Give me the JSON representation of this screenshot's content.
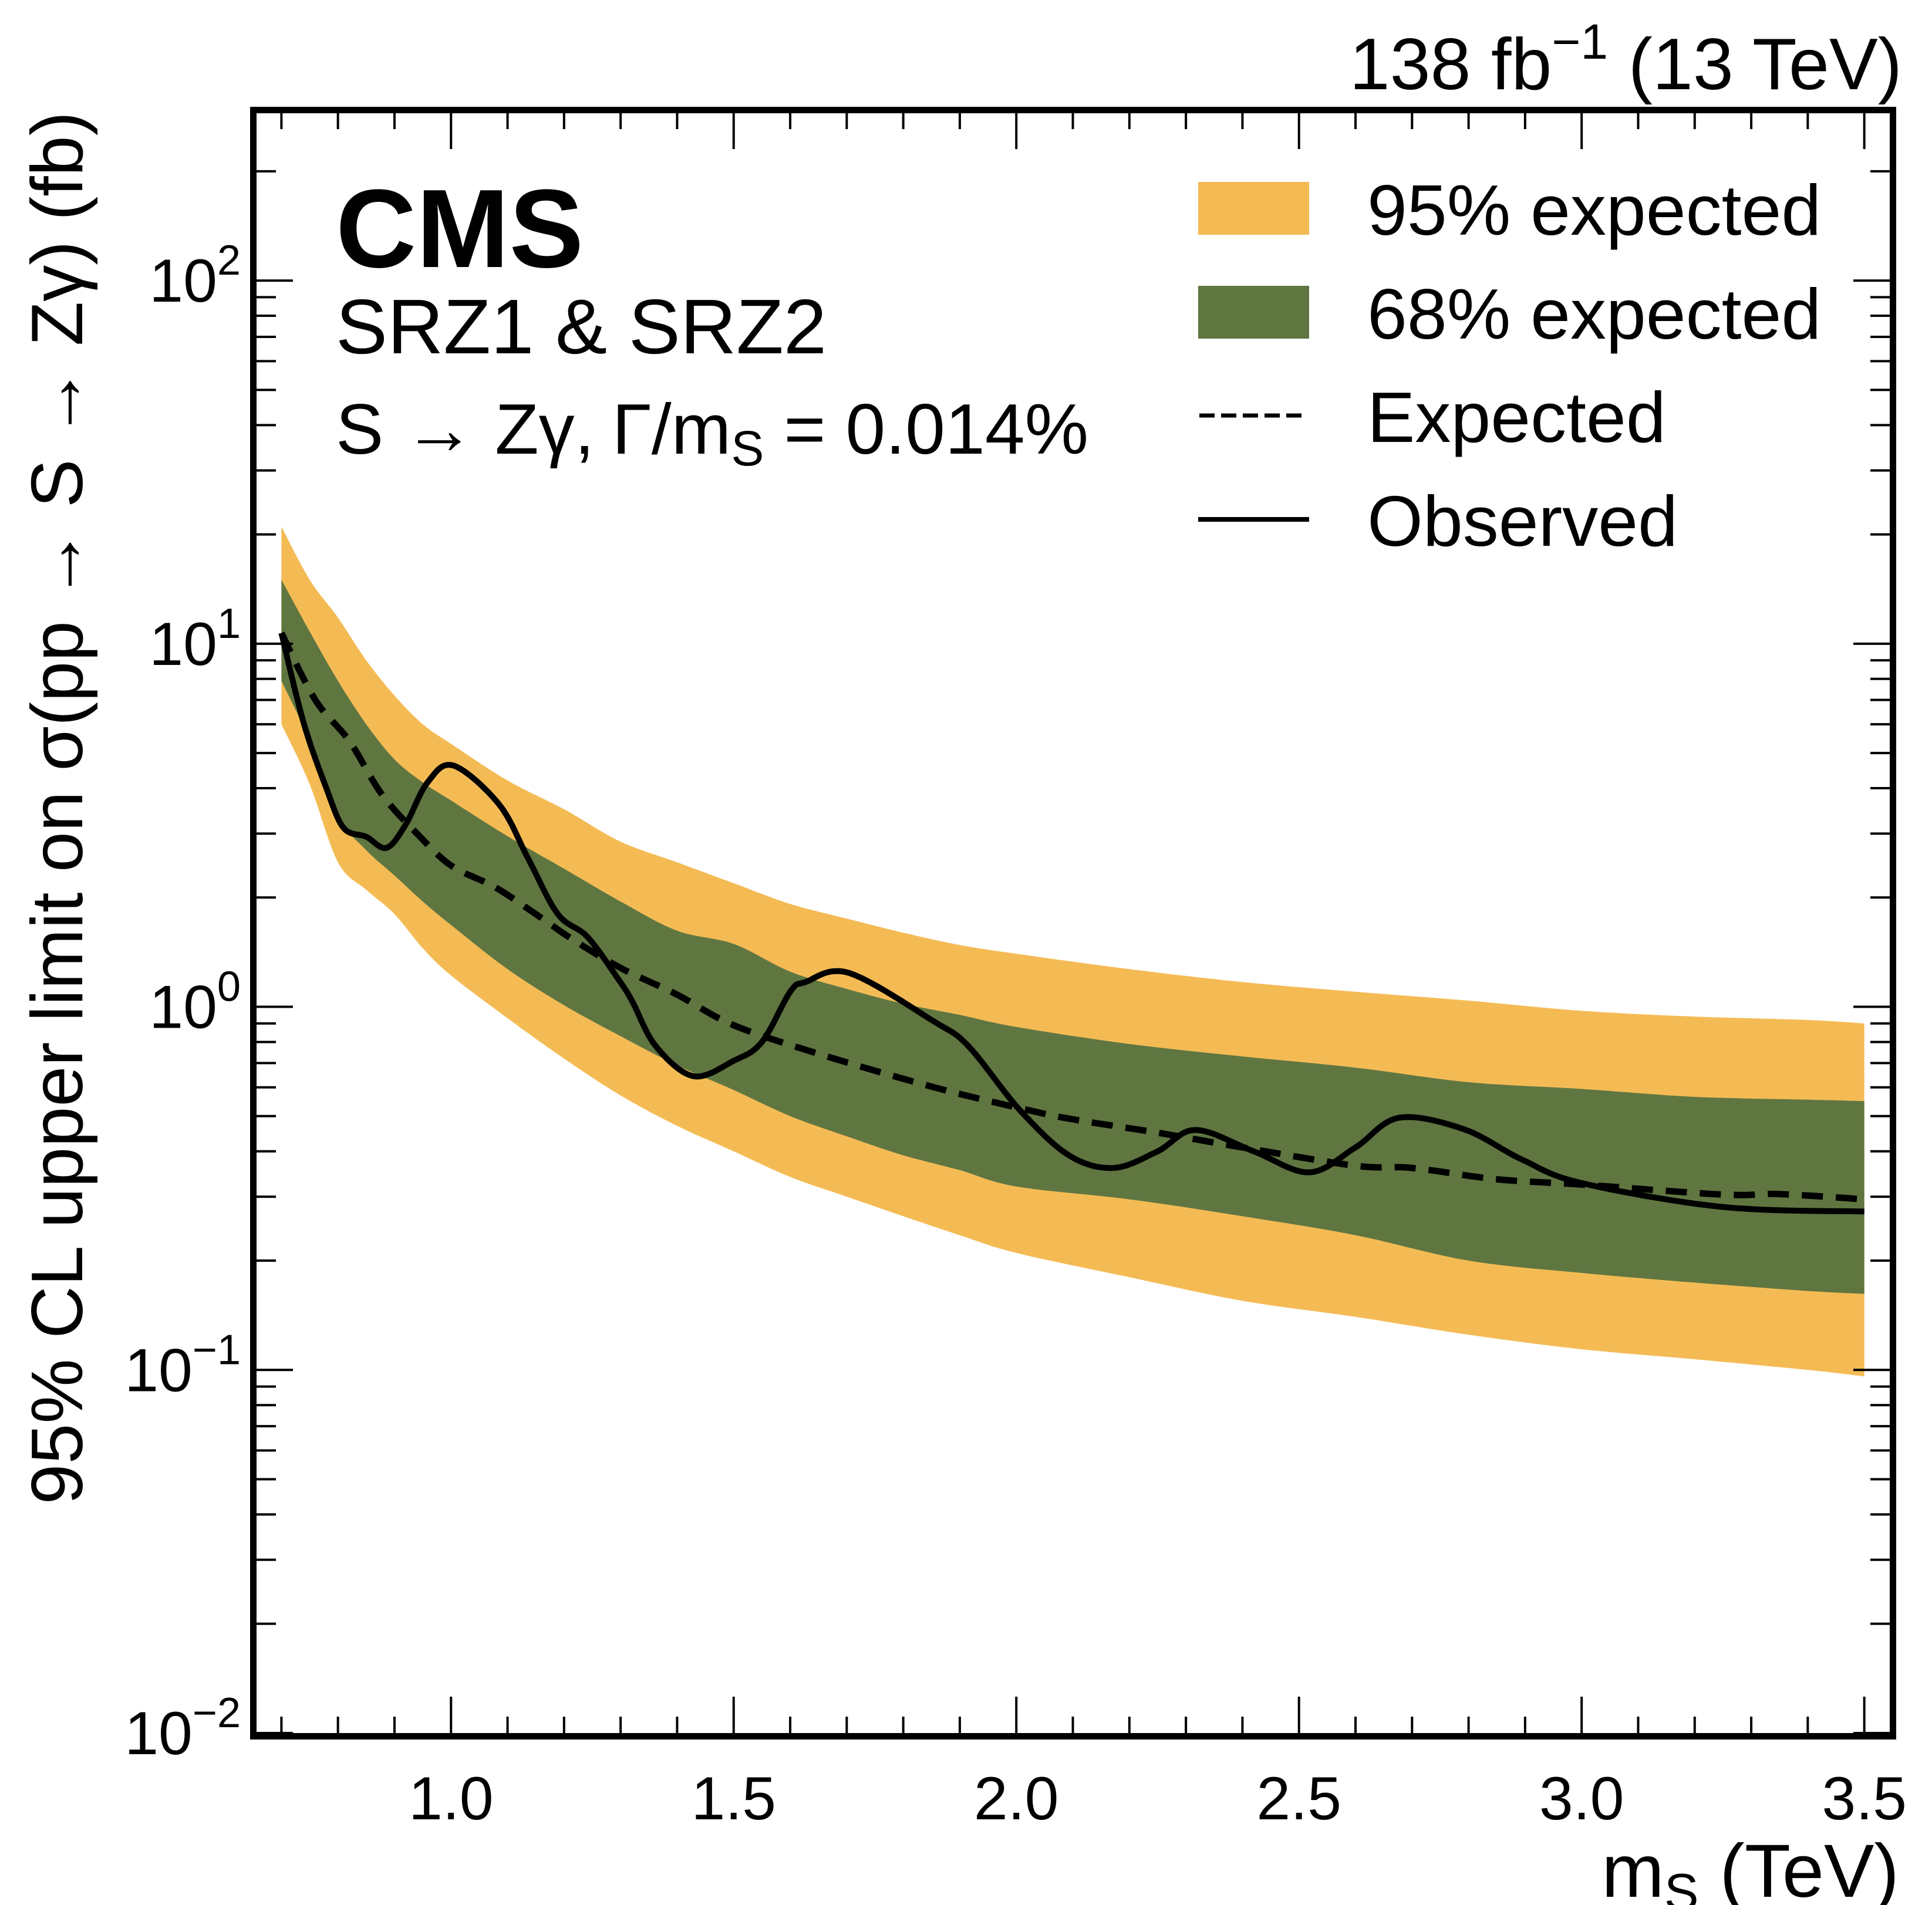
{
  "chart_data": {
    "type": "line",
    "title": "",
    "experiment_label": "CMS",
    "region_label": "SRZ1 & SRZ2",
    "process_label": {
      "decay": "S → Zγ,",
      "width_prefix": "Γ/m",
      "width_sub": "S",
      "width_value": " = 0.014%"
    },
    "lumi_label": {
      "value": "138 fb",
      "exponent": "−1",
      "energy": " (13 TeV)"
    },
    "xlabel": {
      "main": "m",
      "sub": "S",
      "unit": " (TeV)"
    },
    "ylabel": "95% CL upper limit on σ(pp → S → Zγ) (fb)",
    "xscale": "linear",
    "yscale": "log",
    "xlim": [
      0.656,
      3.545
    ],
    "ylim": [
      0.01,
      290
    ],
    "xticks": [
      1.0,
      1.5,
      2.0,
      2.5,
      3.0,
      3.5
    ],
    "xtick_labels": [
      "1.0",
      "1.5",
      "2.0",
      "2.5",
      "3.0",
      "3.5"
    ],
    "xminor_step": 0.1,
    "yticks": [
      {
        "value": 0.01,
        "base": "10",
        "exp": "−2"
      },
      {
        "value": 0.1,
        "base": "10",
        "exp": "−1"
      },
      {
        "value": 1,
        "base": "10",
        "exp": "0"
      },
      {
        "value": 10,
        "base": "10",
        "exp": "1"
      },
      {
        "value": 100,
        "base": "10",
        "exp": "2"
      }
    ],
    "grid": false,
    "legend_position": "top-right",
    "legend": [
      {
        "label": "95% expected",
        "kind": "fill",
        "color": "#f4bb55"
      },
      {
        "label": "68% expected",
        "kind": "fill",
        "color": "#607641"
      },
      {
        "label": "Expected",
        "kind": "dashed",
        "color": "#000000"
      },
      {
        "label": "Observed",
        "kind": "solid",
        "color": "#000000"
      }
    ],
    "colors": {
      "band95": "#f4bb55",
      "band68": "#607641",
      "line": "#000000"
    },
    "bands": {
      "x": [
        0.7,
        0.75,
        0.8,
        0.85,
        0.9,
        0.95,
        1.0,
        1.1,
        1.2,
        1.3,
        1.4,
        1.5,
        1.6,
        1.7,
        1.8,
        1.9,
        2.0,
        2.2,
        2.4,
        2.6,
        2.8,
        3.0,
        3.2,
        3.4,
        3.5
      ],
      "band95_upper": [
        21.0,
        15.0,
        11.8,
        9.0,
        7.2,
        6.0,
        5.3,
        4.2,
        3.5,
        2.85,
        2.5,
        2.19,
        1.92,
        1.75,
        1.6,
        1.48,
        1.4,
        1.27,
        1.17,
        1.1,
        1.04,
        0.975,
        0.94,
        0.92,
        0.9
      ],
      "band68_upper": [
        15.0,
        10.8,
        7.9,
        6.0,
        4.8,
        4.15,
        3.7,
        2.95,
        2.4,
        1.95,
        1.62,
        1.49,
        1.25,
        1.12,
        1.02,
        0.95,
        0.88,
        0.79,
        0.73,
        0.68,
        0.62,
        0.594,
        0.565,
        0.555,
        0.55
      ],
      "band68_lower": [
        7.9,
        5.4,
        3.35,
        2.7,
        2.3,
        1.95,
        1.68,
        1.27,
        1.01,
        0.83,
        0.69,
        0.59,
        0.5,
        0.44,
        0.39,
        0.355,
        0.32,
        0.295,
        0.265,
        0.235,
        0.2,
        0.185,
        0.174,
        0.165,
        0.162
      ],
      "band95_lower": [
        6.0,
        4.1,
        2.5,
        2.1,
        1.8,
        1.45,
        1.22,
        0.93,
        0.72,
        0.57,
        0.47,
        0.4,
        0.34,
        0.3,
        0.265,
        0.235,
        0.21,
        0.18,
        0.155,
        0.14,
        0.125,
        0.114,
        0.107,
        0.1,
        0.096
      ]
    },
    "series": [
      {
        "name": "Expected",
        "style": "dashed",
        "x": [
          0.7,
          0.76,
          0.82,
          0.877,
          0.938,
          1.0,
          1.077,
          1.15,
          1.216,
          1.3,
          1.4,
          1.5,
          1.653,
          1.855,
          2.02,
          2.1,
          2.25,
          2.4,
          2.6,
          2.7,
          2.85,
          3.0,
          3.25,
          3.35,
          3.5
        ],
        "y": [
          10.7,
          7.0,
          5.4,
          3.86,
          3.02,
          2.45,
          2.14,
          1.8,
          1.53,
          1.28,
          1.08,
          0.89,
          0.74,
          0.6,
          0.52,
          0.49,
          0.45,
          0.41,
          0.365,
          0.36,
          0.335,
          0.324,
          0.304,
          0.305,
          0.295
        ]
      },
      {
        "name": "Observed",
        "style": "solid",
        "x": [
          0.7,
          0.739,
          0.779,
          0.81,
          0.85,
          0.886,
          0.92,
          0.958,
          1.004,
          1.085,
          1.137,
          1.189,
          1.241,
          1.293,
          1.32,
          1.362,
          1.429,
          1.5,
          1.55,
          1.6,
          1.627,
          1.704,
          1.855,
          1.915,
          2.006,
          2.093,
          2.172,
          2.25,
          2.317,
          2.42,
          2.518,
          2.6,
          2.677,
          2.792,
          2.894,
          3.0,
          3.25,
          3.5
        ],
        "y": [
          10.7,
          6.08,
          4.02,
          3.11,
          2.94,
          2.74,
          3.18,
          4.14,
          4.62,
          3.61,
          2.55,
          1.8,
          1.56,
          1.21,
          1.04,
          0.78,
          0.644,
          0.71,
          0.8,
          1.1,
          1.17,
          1.24,
          0.91,
          0.78,
          0.52,
          0.39,
          0.36,
          0.4,
          0.458,
          0.4,
          0.35,
          0.41,
          0.495,
          0.46,
          0.38,
          0.327,
          0.281,
          0.273
        ]
      }
    ]
  }
}
